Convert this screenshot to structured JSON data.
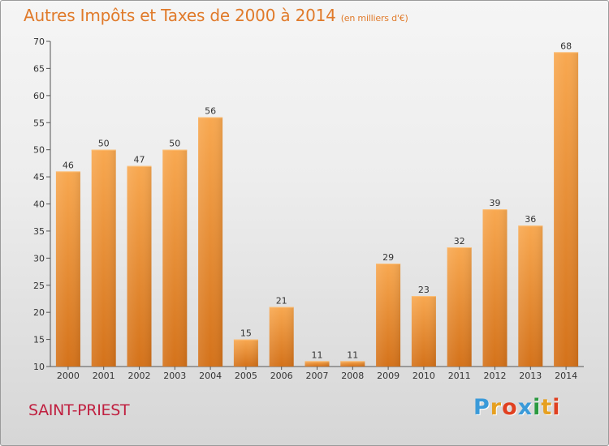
{
  "header": {
    "title": "Autres Impôts et Taxes de 2000 à 2014",
    "subtitle": "(en milliers d'€)"
  },
  "footer": {
    "city": "SAINT-PRIEST",
    "logo_letters": [
      "P",
      "r",
      "o",
      "x",
      "i",
      "t",
      "i"
    ],
    "logo_colors": [
      "#3a9ad9",
      "#e6a020",
      "#e04020",
      "#3a9ad9",
      "#2a9a40",
      "#e6a020",
      "#e04020"
    ]
  },
  "colors": {
    "bar": "#f0902a",
    "bar_light": "#f7aa52",
    "bar_dark": "#d87418",
    "title": "#e07a2a",
    "city": "#c02040"
  },
  "chart_data": {
    "type": "bar",
    "title": "Autres Impôts et Taxes de 2000 à 2014",
    "subtitle": "(en milliers d'€)",
    "categories": [
      "2000",
      "2001",
      "2002",
      "2003",
      "2004",
      "2005",
      "2006",
      "2007",
      "2008",
      "2009",
      "2010",
      "2011",
      "2012",
      "2013",
      "2014"
    ],
    "values": [
      46,
      50,
      47,
      50,
      56,
      15,
      21,
      11,
      11,
      29,
      23,
      32,
      39,
      36,
      68
    ],
    "ylim": [
      10,
      70
    ],
    "yticks": [
      10,
      15,
      20,
      25,
      30,
      35,
      40,
      45,
      50,
      55,
      60,
      65,
      70
    ],
    "grid": false,
    "data_labels": true
  }
}
